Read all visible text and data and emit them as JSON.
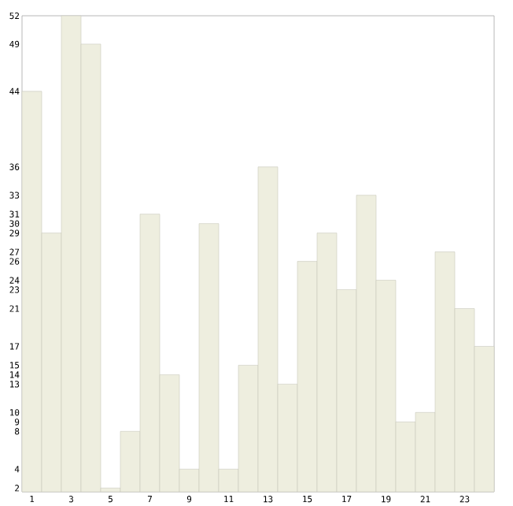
{
  "chart_data": {
    "type": "bar",
    "categories": [
      "1",
      null,
      "3",
      null,
      "5",
      null,
      "7",
      null,
      "9",
      null,
      "11",
      null,
      "13",
      null,
      "15",
      null,
      "17",
      null,
      "19",
      null,
      "21",
      null,
      "23",
      null
    ],
    "values": [
      44,
      29,
      52,
      49,
      2,
      8,
      31,
      14,
      4,
      30,
      4,
      15,
      36,
      13,
      26,
      29,
      23,
      33,
      24,
      9,
      10,
      27,
      21,
      17
    ],
    "color": "#eeeedf",
    "ylim": [
      1.6,
      52
    ],
    "yticks": [
      2,
      4,
      8,
      9,
      10,
      13,
      14,
      15,
      17,
      21,
      23,
      24,
      26,
      27,
      29,
      30,
      31,
      33,
      36,
      44,
      49,
      52
    ]
  }
}
